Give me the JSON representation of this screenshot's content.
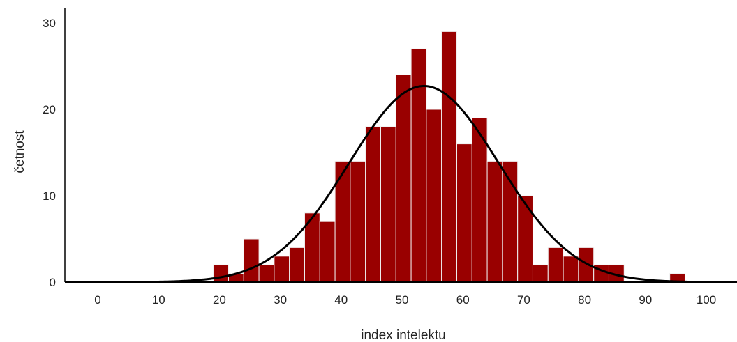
{
  "chart_data": {
    "type": "bar",
    "title": "",
    "xlabel": "index intelektu",
    "ylabel": "četnost",
    "xlim": [
      -5,
      105
    ],
    "ylim": [
      0,
      31
    ],
    "x_ticks": [
      "0",
      "10",
      "20",
      "30",
      "40",
      "50",
      "60",
      "70",
      "80",
      "90",
      "100"
    ],
    "y_ticks": [
      "0",
      "10",
      "20",
      "30"
    ],
    "bin_width": 2.5,
    "bins": [
      {
        "start": 19,
        "count": 2
      },
      {
        "start": 21.5,
        "count": 1
      },
      {
        "start": 24,
        "count": 5
      },
      {
        "start": 26.5,
        "count": 2
      },
      {
        "start": 29,
        "count": 3
      },
      {
        "start": 31.5,
        "count": 4
      },
      {
        "start": 34,
        "count": 8
      },
      {
        "start": 36.5,
        "count": 7
      },
      {
        "start": 39,
        "count": 14
      },
      {
        "start": 41.5,
        "count": 14
      },
      {
        "start": 44,
        "count": 18
      },
      {
        "start": 46.5,
        "count": 18
      },
      {
        "start": 49,
        "count": 24
      },
      {
        "start": 51.5,
        "count": 27
      },
      {
        "start": 54,
        "count": 20
      },
      {
        "start": 56.5,
        "count": 29
      },
      {
        "start": 59,
        "count": 16
      },
      {
        "start": 61.5,
        "count": 19
      },
      {
        "start": 64,
        "count": 14
      },
      {
        "start": 66.5,
        "count": 14
      },
      {
        "start": 69,
        "count": 10
      },
      {
        "start": 71.5,
        "count": 2
      },
      {
        "start": 74,
        "count": 4
      },
      {
        "start": 76.5,
        "count": 3
      },
      {
        "start": 79,
        "count": 4
      },
      {
        "start": 81.5,
        "count": 2
      },
      {
        "start": 84,
        "count": 2
      },
      {
        "start": 94,
        "count": 1
      }
    ],
    "normal_curve": {
      "mean": 53.6,
      "sd": 12.3,
      "peak": 22.7
    },
    "colors": {
      "bar": "#990000",
      "bar_edge": "#f0f0f0",
      "curve": "#000000",
      "axis": "#000000"
    },
    "grid": false,
    "legend": "none"
  }
}
